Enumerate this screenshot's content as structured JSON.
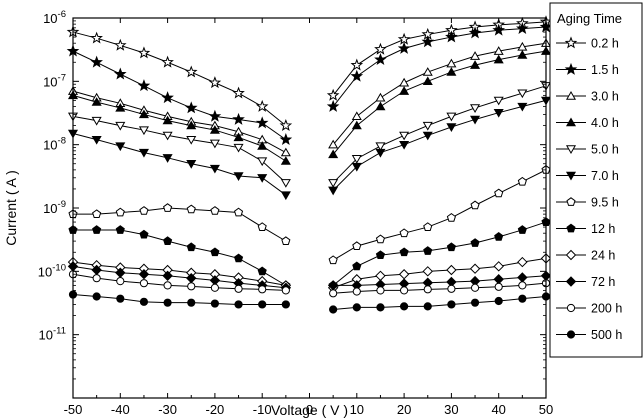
{
  "chart_data": {
    "type": "line",
    "title": "",
    "xlabel": "Voltage ( V )",
    "ylabel": "Current ( A )",
    "xlim": [
      -50,
      50
    ],
    "ylim": [
      1e-12,
      1e-06
    ],
    "yscale": "log",
    "x_ticks": [
      "-50",
      "-40",
      "-30",
      "-20",
      "-10",
      "0",
      "10",
      "20",
      "30",
      "40",
      "50"
    ],
    "y_ticks": [
      {
        "base": "10",
        "exp": "-6",
        "value": 1e-06
      },
      {
        "base": "10",
        "exp": "-7",
        "value": 1e-07
      },
      {
        "base": "10",
        "exp": "-8",
        "value": 1e-08
      },
      {
        "base": "10",
        "exp": "-9",
        "value": 1e-09
      },
      {
        "base": "10",
        "exp": "-10",
        "value": 1e-10
      },
      {
        "base": "10",
        "exp": "-11",
        "value": 1e-11
      }
    ],
    "grid": false,
    "legend": {
      "title": "Aging Time",
      "placement": "right"
    },
    "x": [
      -50,
      -45,
      -40,
      -35,
      -30,
      -25,
      -20,
      -15,
      -10,
      -5,
      5,
      10,
      15,
      20,
      25,
      30,
      35,
      40,
      45,
      50
    ],
    "series": [
      {
        "name": "0.2 h",
        "marker": "star",
        "filled": false,
        "values": [
          6e-07,
          4.8e-07,
          3.7e-07,
          2.8e-07,
          2e-07,
          1.4e-07,
          9.5e-08,
          6.5e-08,
          4e-08,
          2e-08,
          6e-08,
          1.8e-07,
          3.2e-07,
          4.6e-07,
          5.5e-07,
          6.4e-07,
          7.2e-07,
          7.8e-07,
          8.2e-07,
          8.7e-07
        ]
      },
      {
        "name": "1.5 h",
        "marker": "star",
        "filled": true,
        "values": [
          3e-07,
          2e-07,
          1.3e-07,
          8.5e-08,
          5.5e-08,
          3.8e-08,
          2.8e-08,
          2.5e-08,
          2.2e-08,
          1.2e-08,
          4e-08,
          1.2e-07,
          2.2e-07,
          3.3e-07,
          4.2e-07,
          5e-07,
          5.8e-07,
          6.4e-07,
          6.8e-07,
          7.2e-07
        ]
      },
      {
        "name": "3.0 h",
        "marker": "triangle-up",
        "filled": false,
        "values": [
          7e-08,
          5.5e-08,
          4.5e-08,
          3.5e-08,
          2.8e-08,
          2.3e-08,
          2e-08,
          1.6e-08,
          1.2e-08,
          7.5e-09,
          1e-08,
          2.8e-08,
          5.5e-08,
          9.5e-08,
          1.4e-07,
          1.9e-07,
          2.5e-07,
          3e-07,
          3.5e-07,
          4e-07
        ]
      },
      {
        "name": "4.0 h",
        "marker": "triangle-up",
        "filled": true,
        "values": [
          6e-08,
          4.7e-08,
          3.8e-08,
          3e-08,
          2.4e-08,
          2e-08,
          1.7e-08,
          1.3e-08,
          9.5e-09,
          5.5e-09,
          7e-09,
          2e-08,
          4e-08,
          7e-08,
          1e-07,
          1.4e-07,
          1.8e-07,
          2.2e-07,
          2.6e-07,
          3e-07
        ]
      },
      {
        "name": "5.0 h",
        "marker": "triangle-down",
        "filled": false,
        "values": [
          2.8e-08,
          2.4e-08,
          2e-08,
          1.7e-08,
          1.4e-08,
          1.2e-08,
          1.05e-08,
          9e-09,
          5.5e-09,
          2.5e-09,
          2.5e-09,
          6e-09,
          9.5e-09,
          1.4e-08,
          2e-08,
          2.8e-08,
          3.8e-08,
          5e-08,
          6.5e-08,
          8.5e-08
        ]
      },
      {
        "name": "7.0 h",
        "marker": "triangle-down",
        "filled": true,
        "values": [
          1.5e-08,
          1.2e-08,
          9.5e-09,
          7.5e-09,
          6.2e-09,
          5e-09,
          4.2e-09,
          3.2e-09,
          3e-09,
          1.6e-09,
          1.9e-09,
          4.5e-09,
          7.5e-09,
          1e-08,
          1.4e-08,
          1.9e-08,
          2.5e-08,
          3.2e-08,
          4e-08,
          5e-08
        ]
      },
      {
        "name": "9.5 h",
        "marker": "pentagon",
        "filled": false,
        "values": [
          8e-10,
          8e-10,
          8.5e-10,
          9e-10,
          1e-09,
          9.5e-10,
          9e-10,
          8.5e-10,
          5e-10,
          3e-10,
          1.5e-10,
          2.5e-10,
          3.2e-10,
          4e-10,
          5e-10,
          7e-10,
          1.1e-09,
          1.7e-09,
          2.6e-09,
          4e-09
        ]
      },
      {
        "name": "12 h",
        "marker": "pentagon",
        "filled": true,
        "values": [
          4.5e-10,
          4.5e-10,
          4.5e-10,
          3.8e-10,
          3e-10,
          2.4e-10,
          2e-10,
          1.6e-10,
          1e-10,
          6e-11,
          6e-11,
          1.2e-10,
          1.8e-10,
          2e-10,
          2.1e-10,
          2.4e-10,
          2.8e-10,
          3.5e-10,
          4.5e-10,
          6e-10
        ]
      },
      {
        "name": "24 h",
        "marker": "diamond",
        "filled": false,
        "values": [
          1.4e-10,
          1.25e-10,
          1.15e-10,
          1.1e-10,
          1.05e-10,
          9.5e-11,
          9e-11,
          8e-11,
          7e-11,
          6e-11,
          5.5e-11,
          7.5e-11,
          8.5e-11,
          9e-11,
          1e-10,
          1.05e-10,
          1.1e-10,
          1.2e-10,
          1.4e-10,
          1.6e-10
        ]
      },
      {
        "name": "72 h",
        "marker": "diamond",
        "filled": true,
        "values": [
          1.2e-10,
          1.05e-10,
          9.5e-11,
          9e-11,
          8.5e-11,
          7.8e-11,
          7.2e-11,
          6.5e-11,
          6e-11,
          5.5e-11,
          6e-11,
          6e-11,
          6.2e-11,
          6.4e-11,
          6.6e-11,
          6.8e-11,
          7e-11,
          7.5e-11,
          8e-11,
          8.5e-11
        ]
      },
      {
        "name": "200 h",
        "marker": "circle",
        "filled": false,
        "values": [
          9e-11,
          7.8e-11,
          7e-11,
          6.5e-11,
          6e-11,
          5.8e-11,
          5.5e-11,
          5.3e-11,
          5.2e-11,
          5e-11,
          4.5e-11,
          4.8e-11,
          5e-11,
          5e-11,
          5.2e-11,
          5.3e-11,
          5.5e-11,
          5.7e-11,
          6e-11,
          6.5e-11
        ]
      },
      {
        "name": "500 h",
        "marker": "circle",
        "filled": true,
        "values": [
          4.3e-11,
          4e-11,
          3.7e-11,
          3.3e-11,
          3.2e-11,
          3.2e-11,
          3.1e-11,
          3e-11,
          3e-11,
          3e-11,
          2.5e-11,
          2.7e-11,
          2.7e-11,
          2.8e-11,
          2.8e-11,
          3e-11,
          3.2e-11,
          3.4e-11,
          3.7e-11,
          4e-11
        ]
      }
    ]
  }
}
